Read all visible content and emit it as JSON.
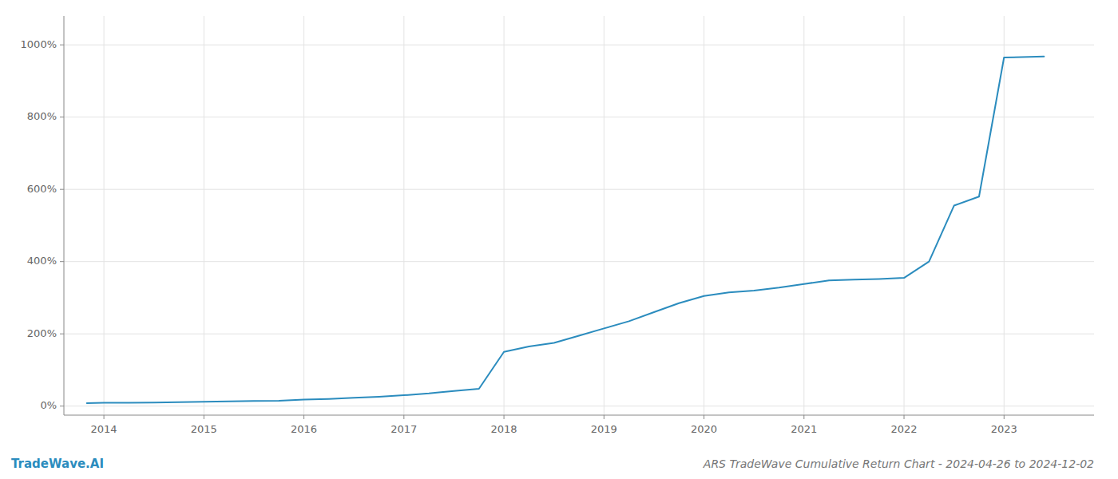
{
  "chart_data": {
    "type": "line",
    "title": "ARS TradeWave Cumulative Return Chart - 2024-04-26 to 2024-12-02",
    "annotations": [
      "TradeWave.AI"
    ],
    "color": "#2b8cbe",
    "grid": true,
    "x": [
      2013.83,
      2014.0,
      2014.25,
      2014.5,
      2014.75,
      2015.0,
      2015.25,
      2015.5,
      2015.75,
      2016.0,
      2016.25,
      2016.5,
      2016.75,
      2017.0,
      2017.25,
      2017.35,
      2017.5,
      2017.75,
      2018.0,
      2018.25,
      2018.5,
      2018.75,
      2019.0,
      2019.25,
      2019.5,
      2019.75,
      2020.0,
      2020.25,
      2020.5,
      2020.75,
      2021.0,
      2021.1,
      2021.25,
      2021.5,
      2021.75,
      2022.0,
      2022.25,
      2022.5,
      2022.75,
      2023.0,
      2023.4
    ],
    "values": [
      8,
      9,
      9,
      10,
      11,
      12,
      13,
      14,
      15,
      18,
      20,
      23,
      26,
      30,
      35,
      38,
      42,
      48,
      150,
      165,
      175,
      195,
      215,
      235,
      260,
      285,
      305,
      315,
      320,
      328,
      338,
      342,
      348,
      350,
      352,
      355,
      400,
      555,
      580,
      965,
      968
    ],
    "xlim": [
      2013.6,
      2023.9
    ],
    "ylim": [
      -25,
      1080
    ],
    "xticks": [
      2014,
      2015,
      2016,
      2017,
      2018,
      2019,
      2020,
      2021,
      2022,
      2023
    ],
    "yticks": [
      {
        "value": 0,
        "label": "0%"
      },
      {
        "value": 200,
        "label": "200%"
      },
      {
        "value": 400,
        "label": "400%"
      },
      {
        "value": 600,
        "label": "600%"
      },
      {
        "value": 800,
        "label": "800%"
      },
      {
        "value": 1000,
        "label": "1000%"
      }
    ]
  }
}
